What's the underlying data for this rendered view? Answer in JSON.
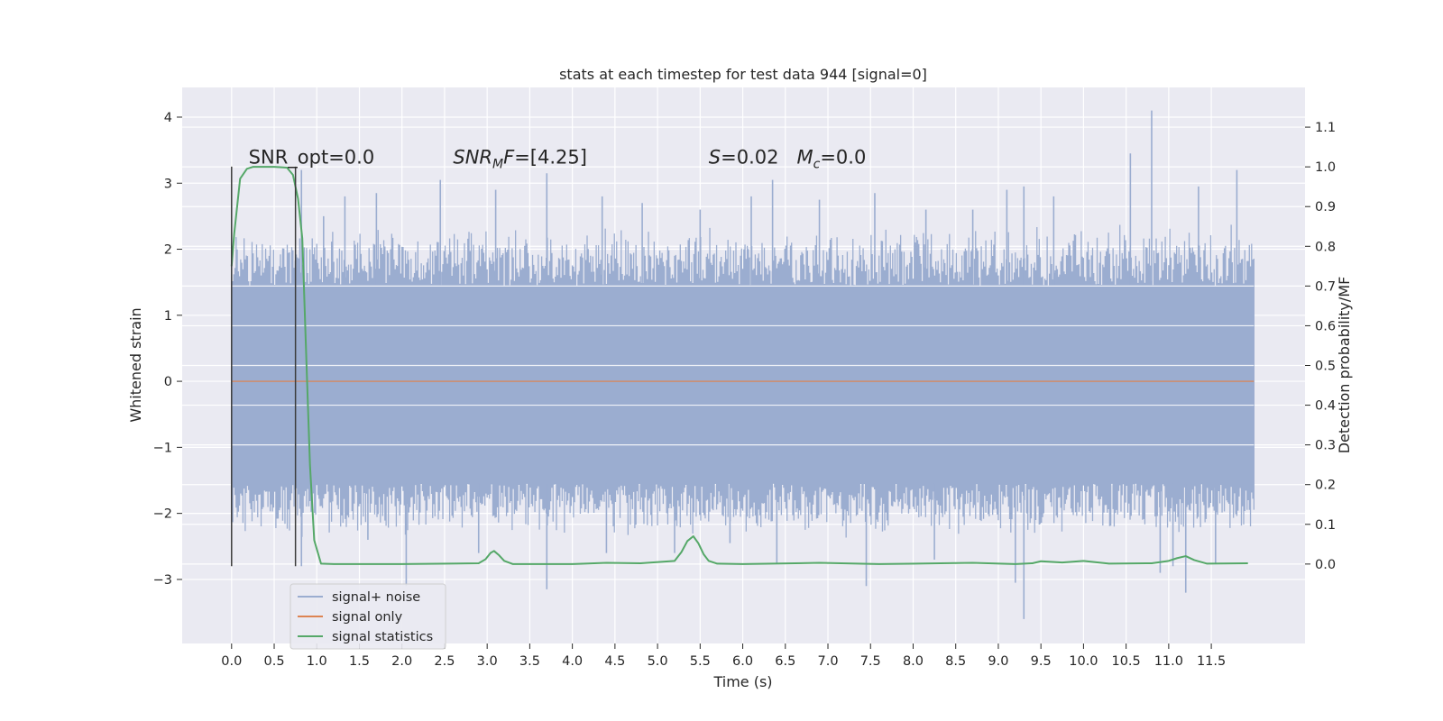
{
  "chart_data": {
    "type": "line",
    "title": "stats at each timestep for test data 944 [signal=0]",
    "xlabel": "Time (s)",
    "ylabel": "Whitened strain",
    "y2label": "Detection probability/MF",
    "xlim": [
      -0.58,
      12.6
    ],
    "ylim": [
      -3.97,
      4.45
    ],
    "y2lim": [
      -0.2,
      1.2
    ],
    "xticks": [
      0.0,
      0.5,
      1.0,
      1.5,
      2.0,
      2.5,
      3.0,
      3.5,
      4.0,
      4.5,
      5.0,
      5.5,
      6.0,
      6.5,
      7.0,
      7.5,
      8.0,
      8.5,
      9.0,
      9.5,
      10.0,
      10.5,
      11.0,
      11.5
    ],
    "xtick_labels": [
      "0.0",
      "0.5",
      "1.0",
      "1.5",
      "2.0",
      "2.5",
      "3.0",
      "3.5",
      "4.0",
      "4.5",
      "5.0",
      "5.5",
      "6.0",
      "6.5",
      "7.0",
      "7.5",
      "8.0",
      "8.5",
      "9.0",
      "9.5",
      "10.0",
      "10.5",
      "11.0",
      "11.5"
    ],
    "yticks": [
      -3,
      -2,
      -1,
      0,
      1,
      2,
      3,
      4
    ],
    "ytick_labels": [
      "−3",
      "−2",
      "−1",
      "0",
      "1",
      "2",
      "3",
      "4"
    ],
    "y2ticks": [
      0.0,
      0.1,
      0.2,
      0.3,
      0.4,
      0.5,
      0.6,
      0.7,
      0.8,
      0.9,
      1.0,
      1.1
    ],
    "y2tick_labels": [
      "0.0",
      "0.1",
      "0.2",
      "0.3",
      "0.4",
      "0.5",
      "0.6",
      "0.7",
      "0.8",
      "0.9",
      "1.0",
      "1.1"
    ],
    "grid": true,
    "legend_position": "lower-left",
    "annotations": [
      {
        "parts": [
          {
            "t": "SNR_opt=0.0",
            "i": false
          }
        ],
        "x": 0.2,
        "y": 3.3
      },
      {
        "parts": [
          {
            "t": "SNR",
            "i": true
          },
          {
            "t": "M",
            "i": true,
            "sub": true
          },
          {
            "t": "F",
            "i": true
          },
          {
            "t": "=[4.25]",
            "i": false
          }
        ],
        "x": 2.6,
        "y": 3.3
      },
      {
        "parts": [
          {
            "t": "S",
            "i": true
          },
          {
            "t": "=0.02   ",
            "i": false
          },
          {
            "t": "M",
            "i": true
          },
          {
            "t": "c",
            "i": true,
            "sub": true
          },
          {
            "t": "=0.0",
            "i": false
          }
        ],
        "x": 5.6,
        "y": 3.3
      }
    ],
    "vertical_markers": [
      {
        "x": 0.0,
        "ymin": -2.8,
        "ymax": 3.25
      },
      {
        "x": 0.75,
        "ymin": -2.8,
        "ymax": 3.25
      }
    ],
    "colors": {
      "background": "#eaeaf2",
      "grid": "#ffffff",
      "noise": "#9badd0",
      "signal_only": "#dd8452",
      "statistics": "#55a868",
      "markers": "#3c3c3c"
    },
    "series": [
      {
        "name": "signal+ noise",
        "axis": "left",
        "style": "noise-band",
        "t_range": [
          0.0,
          12.0
        ],
        "core_band": [
          -1.55,
          1.45
        ],
        "typical_envelope": [
          -2.3,
          2.3
        ],
        "max_value": 4.1,
        "min_value": -3.6,
        "peaks": [
          {
            "x": 0.82,
            "y": 3.2
          },
          {
            "x": 1.08,
            "y": 2.5
          },
          {
            "x": 1.33,
            "y": 2.8
          },
          {
            "x": 1.7,
            "y": 2.85
          },
          {
            "x": 2.45,
            "y": 3.05
          },
          {
            "x": 3.1,
            "y": 2.9
          },
          {
            "x": 3.7,
            "y": 3.15
          },
          {
            "x": 4.35,
            "y": 2.8
          },
          {
            "x": 4.82,
            "y": 2.7
          },
          {
            "x": 5.5,
            "y": 2.6
          },
          {
            "x": 6.1,
            "y": 2.8
          },
          {
            "x": 6.35,
            "y": 3.05
          },
          {
            "x": 6.9,
            "y": 2.75
          },
          {
            "x": 7.55,
            "y": 2.85
          },
          {
            "x": 8.15,
            "y": 2.6
          },
          {
            "x": 8.7,
            "y": 2.6
          },
          {
            "x": 9.1,
            "y": 2.9
          },
          {
            "x": 9.3,
            "y": 2.95
          },
          {
            "x": 9.65,
            "y": 2.8
          },
          {
            "x": 10.55,
            "y": 3.45
          },
          {
            "x": 10.8,
            "y": 4.1
          },
          {
            "x": 11.35,
            "y": 2.95
          },
          {
            "x": 11.8,
            "y": 3.2
          }
        ],
        "troughs": [
          {
            "x": 0.82,
            "y": -2.8
          },
          {
            "x": 1.6,
            "y": -2.4
          },
          {
            "x": 2.05,
            "y": -3.1
          },
          {
            "x": 2.9,
            "y": -2.6
          },
          {
            "x": 3.7,
            "y": -3.15
          },
          {
            "x": 4.4,
            "y": -2.6
          },
          {
            "x": 5.2,
            "y": -2.6
          },
          {
            "x": 5.85,
            "y": -2.45
          },
          {
            "x": 6.4,
            "y": -2.75
          },
          {
            "x": 7.45,
            "y": -3.1
          },
          {
            "x": 8.25,
            "y": -2.7
          },
          {
            "x": 9.3,
            "y": -3.6
          },
          {
            "x": 9.2,
            "y": -3.05
          },
          {
            "x": 10.9,
            "y": -2.9
          },
          {
            "x": 11.05,
            "y": -2.8
          },
          {
            "x": 11.2,
            "y": -3.2
          },
          {
            "x": 11.55,
            "y": -2.75
          }
        ]
      },
      {
        "name": "signal only",
        "axis": "left",
        "x": [
          0.0,
          12.0
        ],
        "values": [
          0.0,
          0.0
        ]
      },
      {
        "name": "signal statistics",
        "axis": "right",
        "x": [
          0.0,
          0.03,
          0.1,
          0.18,
          0.25,
          0.35,
          0.5,
          0.65,
          0.72,
          0.78,
          0.83,
          0.88,
          0.92,
          0.97,
          1.05,
          1.2,
          2.0,
          2.9,
          2.98,
          3.04,
          3.08,
          3.14,
          3.2,
          3.3,
          4.0,
          4.4,
          4.8,
          5.2,
          5.28,
          5.35,
          5.42,
          5.48,
          5.54,
          5.6,
          5.7,
          6.0,
          6.9,
          7.6,
          8.7,
          9.2,
          9.4,
          9.5,
          9.75,
          10.0,
          10.3,
          10.8,
          11.0,
          11.1,
          11.2,
          11.3,
          11.45,
          11.93
        ],
        "values": [
          0.75,
          0.83,
          0.97,
          0.995,
          1.0,
          1.0,
          1.0,
          0.998,
          0.98,
          0.92,
          0.82,
          0.5,
          0.25,
          0.06,
          0.001,
          0.0,
          0.0,
          0.002,
          0.012,
          0.028,
          0.033,
          0.022,
          0.008,
          0.0,
          0.0,
          0.003,
          0.002,
          0.008,
          0.03,
          0.058,
          0.07,
          0.052,
          0.025,
          0.008,
          0.001,
          0.0,
          0.003,
          0.0,
          0.003,
          0.0,
          0.002,
          0.007,
          0.004,
          0.008,
          0.001,
          0.002,
          0.008,
          0.015,
          0.02,
          0.01,
          0.001,
          0.002
        ]
      }
    ]
  }
}
